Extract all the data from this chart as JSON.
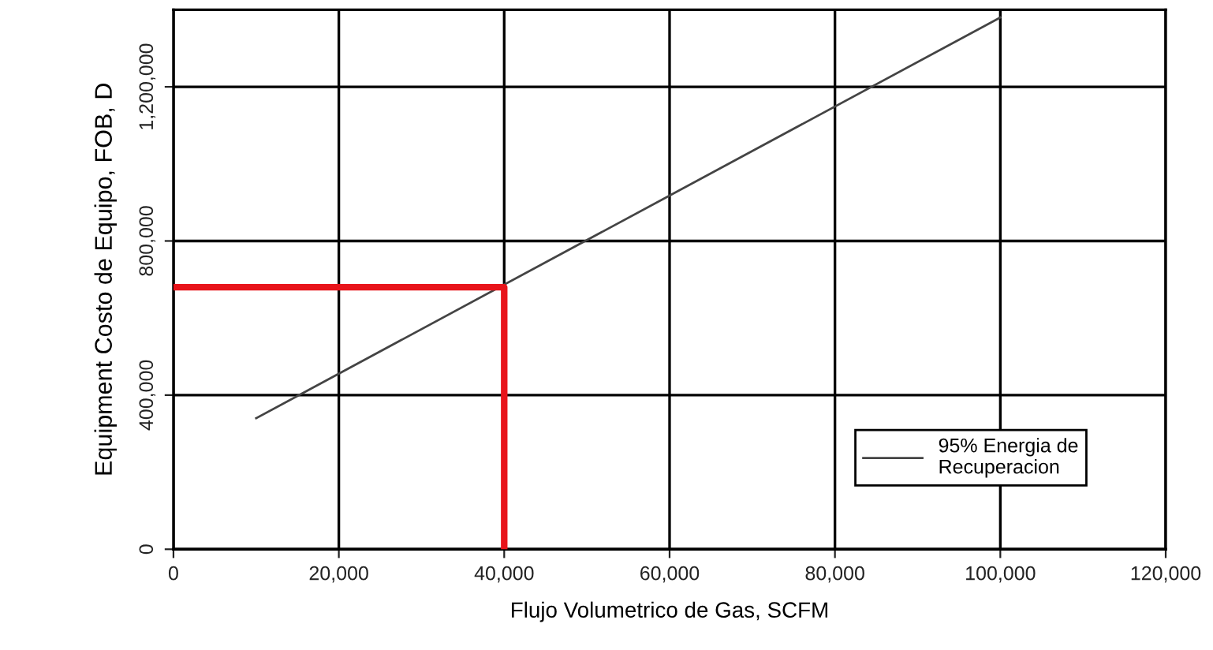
{
  "chart_data": {
    "type": "line",
    "xlabel": "Flujo Volumetrico de Gas, SCFM",
    "ylabel": "Equipment Costo de Equipo, FOB, D",
    "series": [
      {
        "name": "95% Energia de\nRecuperacion",
        "color": "#444444",
        "x": [
          10000,
          100000
        ],
        "values": [
          340000,
          1380000
        ]
      },
      {
        "color": "#e8141b",
        "x": [
          0,
          40000,
          40000
        ],
        "values": [
          680000,
          680000,
          0
        ]
      }
    ],
    "xlim": [
      0,
      120000
    ],
    "ylim": [
      0,
      1400000
    ],
    "xticks": [
      {
        "value": 0,
        "label": "0"
      },
      {
        "value": 20000,
        "label": "20,000"
      },
      {
        "value": 40000,
        "label": "40,000"
      },
      {
        "value": 60000,
        "label": "60,000"
      },
      {
        "value": 80000,
        "label": "80,000"
      },
      {
        "value": 100000,
        "label": "100,000"
      },
      {
        "value": 120000,
        "label": "120,000"
      }
    ],
    "yticks": [
      {
        "value": 0,
        "label": "0"
      },
      {
        "value": 400000,
        "label": "400,000"
      },
      {
        "value": 800000,
        "label": "800,000"
      },
      {
        "value": 1200000,
        "label": "1,200,000"
      }
    ],
    "grid": true,
    "legend": "bottom right"
  }
}
